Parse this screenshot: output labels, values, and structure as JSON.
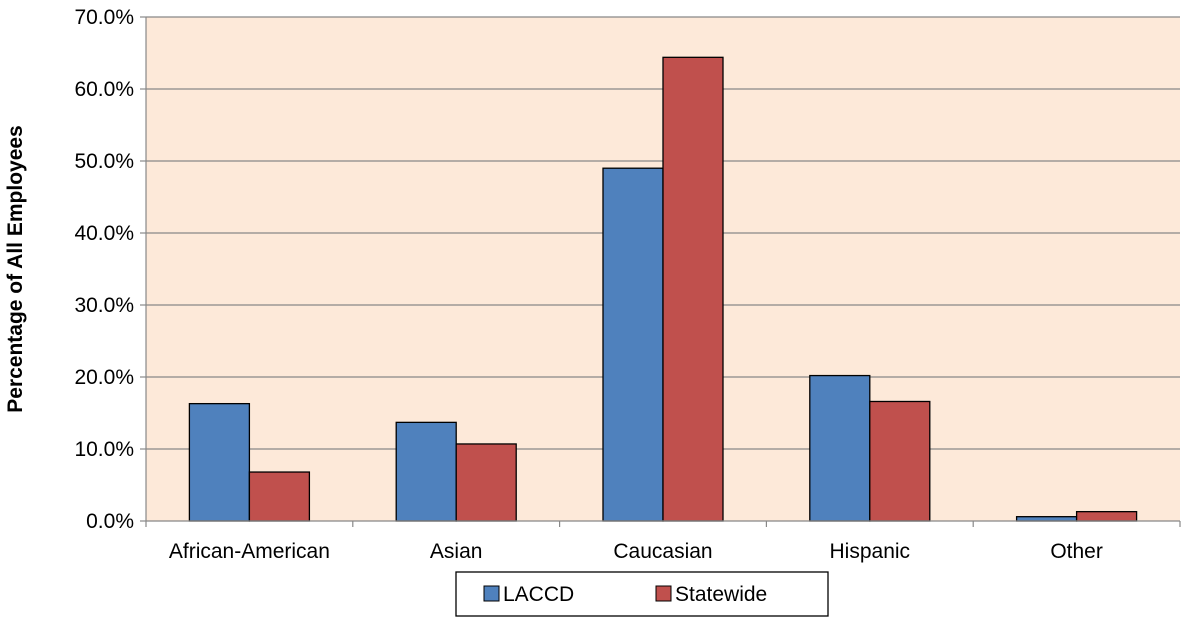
{
  "chart_data": {
    "type": "bar",
    "title": "",
    "xlabel": "",
    "ylabel": "Percentage of All Employees",
    "categories": [
      "African-American",
      "Asian",
      "Caucasian",
      "Hispanic",
      "Other"
    ],
    "series": [
      {
        "name": "LACCD",
        "values": [
          16.3,
          13.7,
          49.0,
          20.2,
          0.6
        ]
      },
      {
        "name": "Statewide",
        "values": [
          6.8,
          10.7,
          64.4,
          16.6,
          1.3
        ]
      }
    ],
    "ylim": [
      0,
      70
    ],
    "yticks": [
      "0.0%",
      "10.0%",
      "20.0%",
      "30.0%",
      "40.0%",
      "50.0%",
      "60.0%",
      "70.0%"
    ],
    "grid": true,
    "legend_position": "bottom",
    "colors": {
      "LACCD": "#4f81bd",
      "Statewide": "#c0504d",
      "plot_background": "#fde9d9",
      "gridline": "#888888"
    }
  }
}
